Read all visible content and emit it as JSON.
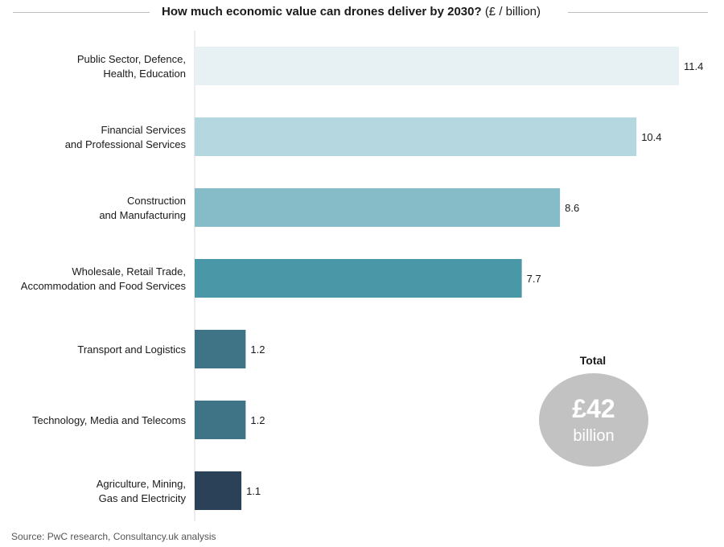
{
  "chart_data": {
    "type": "bar",
    "orientation": "horizontal",
    "title": "How much economic value can drones deliver by 2030?",
    "title_unit": "(£ / billion)",
    "categories": [
      [
        "Public Sector, Defence,",
        "Health, Education"
      ],
      [
        "Financial Services",
        "and Professional Services"
      ],
      [
        "Construction",
        "and Manufacturing"
      ],
      [
        "Wholesale, Retail Trade,",
        "Accommodation and Food Services"
      ],
      [
        "Transport and Logistics"
      ],
      [
        "Technology, Media and Telecoms"
      ],
      [
        "Agriculture, Mining,",
        "Gas and Electricity"
      ]
    ],
    "values": [
      11.4,
      10.4,
      8.6,
      7.7,
      1.2,
      1.2,
      1.1
    ],
    "value_labels": [
      "11.4",
      "10.4",
      "8.6",
      "7.7",
      "1.2",
      "1.2",
      "1.1"
    ],
    "colors": [
      "#e7f1f4",
      "#b5d8e0",
      "#86bcc8",
      "#4a97a8",
      "#3e7486",
      "#3e7486",
      "#2b4158"
    ],
    "xlim": [
      0,
      11.4
    ],
    "grid": false,
    "legend": "none"
  },
  "total": {
    "label": "Total",
    "value": "£42",
    "unit": "billion",
    "color": "#c2c2c2"
  },
  "source": "Source: PwC research, Consultancy.uk analysis"
}
